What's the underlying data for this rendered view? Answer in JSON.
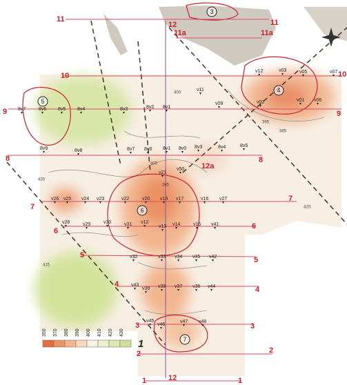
{
  "profiles": [
    {
      "label": "11"
    },
    {
      "label": "12"
    },
    {
      "label": "11a"
    },
    {
      "label": "10"
    },
    {
      "label": "9"
    },
    {
      "label": "8"
    },
    {
      "label": "12a"
    },
    {
      "label": "7"
    },
    {
      "label": "6"
    },
    {
      "label": "5"
    },
    {
      "label": "4"
    },
    {
      "label": "3"
    },
    {
      "label": "2"
    },
    {
      "label": "1"
    }
  ],
  "circled": [
    "3",
    "4",
    "5",
    "6",
    "7"
  ],
  "stations": [
    "v11",
    "v12",
    "v03",
    "v05",
    "v07",
    "v02",
    "v09",
    "v01",
    "v06",
    "8v7",
    "8v6",
    "8v5",
    "8v4",
    "8v3",
    "8v2",
    "8v1",
    "8v9",
    "8v8",
    "8v7",
    "8v6",
    "8v1",
    "8v0",
    "8v3",
    "8v4",
    "8v5",
    "v21",
    "v50",
    "v26",
    "v25",
    "v24",
    "v23",
    "v22",
    "v20",
    "v19",
    "v17",
    "v16",
    "v27",
    "v28",
    "v29",
    "v30",
    "v31",
    "v12",
    "v13",
    "v14",
    "v15",
    "v41",
    "v32",
    "v33",
    "v34",
    "v35",
    "v42",
    "v43",
    "v39",
    "v38",
    "v37",
    "v36",
    "v44",
    "v45",
    "v46",
    "v47",
    "v48"
  ],
  "contours": [
    400,
    385,
    395,
    415,
    420,
    420,
    385,
    400
  ],
  "legend": {
    "values": [
      350,
      370,
      380,
      390,
      400,
      410,
      420,
      430
    ],
    "label": "1"
  }
}
